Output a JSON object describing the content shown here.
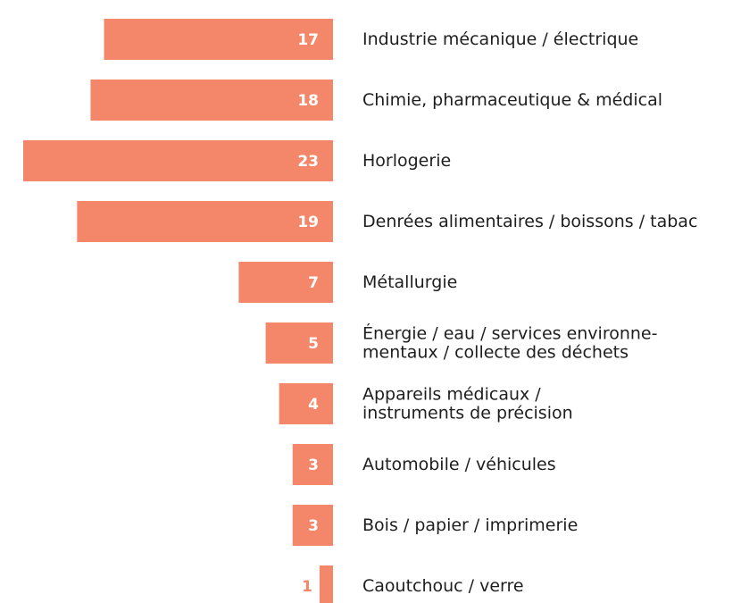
{
  "chart_data": {
    "type": "bar",
    "orientation": "horizontal-left",
    "categories": [
      "Industrie mécanique / électrique",
      "Chimie, pharmaceutique & médical",
      "Horlogerie",
      "Denrées alimentaires / boissons / tabac",
      "Métallurgie",
      "Énergie / eau / services environne-\nmentaux / collecte des déchets",
      "Appareils médicaux /\ninstruments de précision",
      "Automobile / véhicules",
      "Bois / papier / imprimerie",
      "Caoutchouc / verre"
    ],
    "values": [
      17,
      18,
      23,
      19,
      7,
      5,
      4,
      3,
      3,
      1
    ],
    "color": "#f4876a"
  }
}
